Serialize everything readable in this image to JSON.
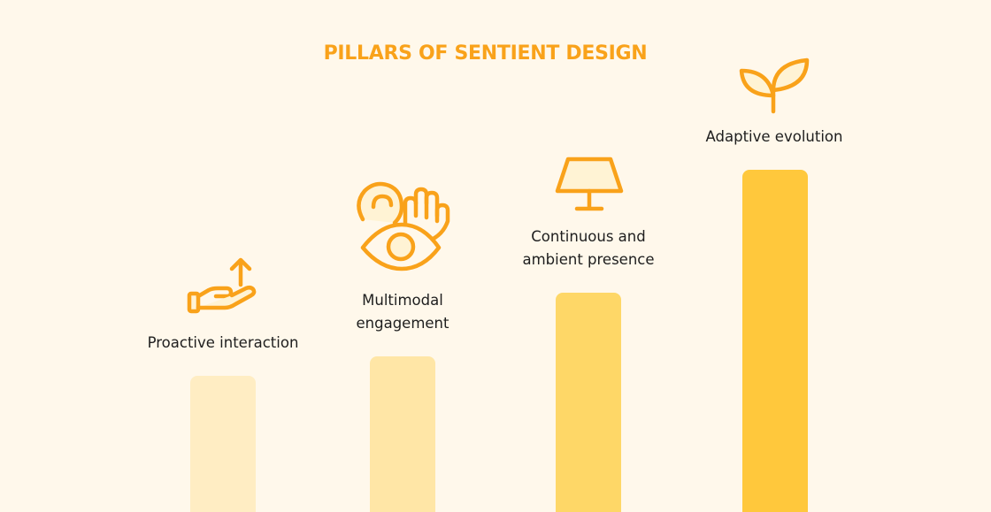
{
  "title": "PILLARS OF SENTIENT DESIGN",
  "colors": {
    "accent": "#F9A21A",
    "background": "#FFF8EB",
    "bar_1": "#FFEDC3",
    "bar_2": "#FFE6A6",
    "bar_3": "#FED767",
    "bar_4": "#FFC83C"
  },
  "pillars": [
    {
      "label_lines": [
        "Proactive interaction"
      ],
      "icon": "hand-offering-arrow-up-icon"
    },
    {
      "label_lines": [
        "Multimodal",
        "engagement"
      ],
      "icon": "ear-eye-hand-icon"
    },
    {
      "label_lines": [
        "Continuous and",
        "ambient presence"
      ],
      "icon": "lamp-icon"
    },
    {
      "label_lines": [
        "Adaptive evolution"
      ],
      "icon": "sprout-icon"
    }
  ]
}
